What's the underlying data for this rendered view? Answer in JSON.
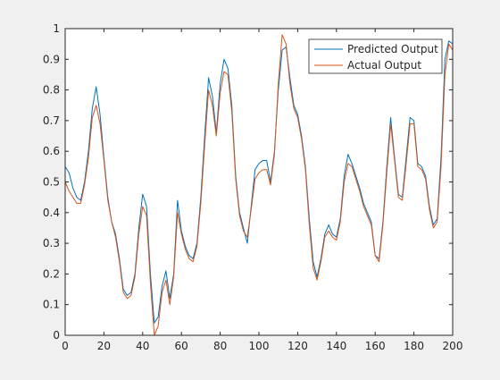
{
  "chart_data": {
    "type": "line",
    "title": "",
    "xlabel": "",
    "ylabel": "",
    "xlim": [
      0,
      200
    ],
    "ylim": [
      0,
      1
    ],
    "xticks": [
      0,
      20,
      40,
      60,
      80,
      100,
      120,
      140,
      160,
      180,
      200
    ],
    "yticks": [
      0,
      0.1,
      0.2,
      0.3,
      0.4,
      0.5,
      0.6,
      0.7,
      0.8,
      0.9,
      1
    ],
    "grid": false,
    "legend_position": "top-right",
    "series": [
      {
        "name": "Predicted Output",
        "color": "#0072BD",
        "x": [
          0,
          2,
          4,
          6,
          8,
          10,
          12,
          14,
          16,
          18,
          20,
          22,
          24,
          26,
          28,
          30,
          32,
          34,
          36,
          38,
          40,
          42,
          44,
          46,
          48,
          50,
          52,
          54,
          56,
          58,
          60,
          62,
          64,
          66,
          68,
          70,
          72,
          74,
          76,
          78,
          80,
          82,
          84,
          86,
          88,
          90,
          92,
          94,
          96,
          98,
          100,
          102,
          104,
          106,
          108,
          110,
          112,
          114,
          116,
          118,
          120,
          122,
          124,
          126,
          128,
          130,
          132,
          134,
          136,
          138,
          140,
          142,
          144,
          146,
          148,
          150,
          152,
          154,
          156,
          158,
          160,
          162,
          164,
          166,
          168,
          170,
          172,
          174,
          176,
          178,
          180,
          182,
          184,
          186,
          188,
          190,
          192,
          194,
          196,
          198,
          200
        ],
        "values": [
          0.55,
          0.53,
          0.48,
          0.45,
          0.44,
          0.5,
          0.6,
          0.74,
          0.81,
          0.72,
          0.58,
          0.45,
          0.37,
          0.33,
          0.25,
          0.15,
          0.13,
          0.14,
          0.2,
          0.35,
          0.46,
          0.42,
          0.2,
          0.04,
          0.06,
          0.16,
          0.21,
          0.12,
          0.2,
          0.44,
          0.34,
          0.29,
          0.26,
          0.25,
          0.3,
          0.45,
          0.65,
          0.84,
          0.78,
          0.66,
          0.82,
          0.9,
          0.87,
          0.75,
          0.52,
          0.4,
          0.35,
          0.3,
          0.42,
          0.54,
          0.56,
          0.57,
          0.57,
          0.5,
          0.6,
          0.8,
          0.93,
          0.94,
          0.84,
          0.75,
          0.72,
          0.65,
          0.55,
          0.38,
          0.24,
          0.19,
          0.25,
          0.33,
          0.36,
          0.33,
          0.32,
          0.38,
          0.52,
          0.59,
          0.56,
          0.52,
          0.48,
          0.43,
          0.4,
          0.37,
          0.26,
          0.25,
          0.37,
          0.55,
          0.71,
          0.58,
          0.46,
          0.45,
          0.58,
          0.71,
          0.7,
          0.56,
          0.55,
          0.52,
          0.42,
          0.36,
          0.38,
          0.58,
          0.9,
          0.96,
          0.95
        ]
      },
      {
        "name": "Actual Output",
        "color": "#D95319",
        "x": [
          0,
          2,
          4,
          6,
          8,
          10,
          12,
          14,
          16,
          18,
          20,
          22,
          24,
          26,
          28,
          30,
          32,
          34,
          36,
          38,
          40,
          42,
          44,
          46,
          48,
          50,
          52,
          54,
          56,
          58,
          60,
          62,
          64,
          66,
          68,
          70,
          72,
          74,
          76,
          78,
          80,
          82,
          84,
          86,
          88,
          90,
          92,
          94,
          96,
          98,
          100,
          102,
          104,
          106,
          108,
          110,
          112,
          114,
          116,
          118,
          120,
          122,
          124,
          126,
          128,
          130,
          132,
          134,
          136,
          138,
          140,
          142,
          144,
          146,
          148,
          150,
          152,
          154,
          156,
          158,
          160,
          162,
          164,
          166,
          168,
          170,
          172,
          174,
          176,
          178,
          180,
          182,
          184,
          186,
          188,
          190,
          192,
          194,
          196,
          198,
          200
        ],
        "values": [
          0.5,
          0.47,
          0.45,
          0.43,
          0.43,
          0.49,
          0.58,
          0.71,
          0.75,
          0.69,
          0.57,
          0.44,
          0.37,
          0.32,
          0.24,
          0.14,
          0.12,
          0.13,
          0.19,
          0.33,
          0.42,
          0.39,
          0.17,
          0.0,
          0.03,
          0.14,
          0.18,
          0.1,
          0.19,
          0.4,
          0.33,
          0.28,
          0.25,
          0.24,
          0.29,
          0.43,
          0.62,
          0.8,
          0.75,
          0.65,
          0.79,
          0.86,
          0.85,
          0.73,
          0.51,
          0.39,
          0.34,
          0.32,
          0.41,
          0.51,
          0.53,
          0.54,
          0.54,
          0.49,
          0.59,
          0.82,
          0.98,
          0.95,
          0.82,
          0.74,
          0.71,
          0.64,
          0.54,
          0.36,
          0.22,
          0.18,
          0.24,
          0.32,
          0.34,
          0.32,
          0.31,
          0.37,
          0.5,
          0.56,
          0.55,
          0.51,
          0.47,
          0.42,
          0.39,
          0.36,
          0.26,
          0.24,
          0.36,
          0.53,
          0.69,
          0.57,
          0.45,
          0.44,
          0.56,
          0.69,
          0.69,
          0.55,
          0.54,
          0.51,
          0.41,
          0.35,
          0.37,
          0.55,
          0.85,
          0.95,
          0.93
        ]
      }
    ]
  }
}
